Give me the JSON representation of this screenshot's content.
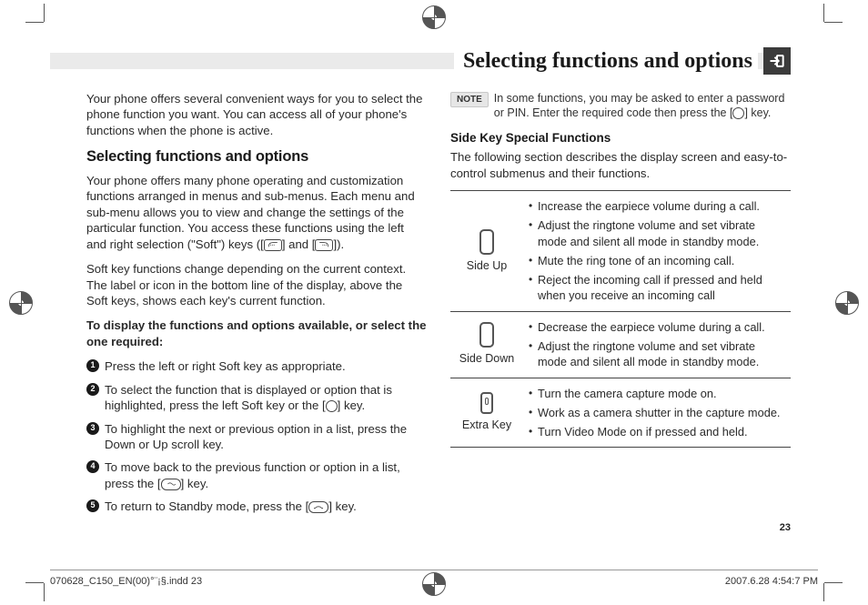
{
  "header": {
    "title": "Selecting functions and options"
  },
  "left_col": {
    "intro": "Your phone offers several convenient ways for you to select the phone function you want. You can access all of your phone's functions when the phone is active.",
    "h2": "Selecting functions and options",
    "p1_a": "Your phone offers many phone operating and customization functions arranged in menus and sub-menus. Each menu and sub-menu allows you to view and change the settings of the particular function. You access these functions using the left and right selection (\"Soft\") keys ([",
    "p1_b": "] and [",
    "p1_c": "]).",
    "p2": "Soft key functions change depending on the current context. The label or icon in the bottom line of the display, above the Soft keys, shows each key's current function.",
    "lead": "To display the functions and options available, or select the one required:",
    "steps": [
      "Press the left or right Soft key as appropriate.",
      "To select the function that is displayed or option that is highlighted, press the left Soft key or the [",
      "To highlight the next or previous option in a list, press the Down or Up scroll key.",
      "To move back to the previous function or option in a list, press the [",
      "To return to Standby mode, press the ["
    ],
    "step2_tail": "] key.",
    "step4_tail": "] key.",
    "step5_tail": "] key."
  },
  "right_col": {
    "note_label": "NOTE",
    "note_a": "In some functions, you may be asked to enter a password or PIN. Enter the required code then press the [",
    "note_b": "] key.",
    "subhead": "Side Key Special Functions",
    "sub_p": "The following section describes the display screen and easy-to-control submenus and their functions.",
    "table": {
      "rows": [
        {
          "label": "Side Up",
          "items": [
            "Increase the earpiece volume during a call.",
            "Adjust the ringtone volume and set vibrate mode and silent all mode in standby mode.",
            "Mute the ring tone of an incoming call.",
            "Reject the incoming call if pressed and held when you receive an incoming call"
          ]
        },
        {
          "label": "Side Down",
          "items": [
            "Decrease the earpiece volume during a call.",
            "Adjust the ringtone volume and set vibrate mode and silent all mode in standby mode."
          ]
        },
        {
          "label": "Extra Key",
          "items": [
            "Turn the camera capture mode on.",
            "Work as a camera shutter in the capture mode.",
            "Turn Video Mode on if pressed and held."
          ]
        }
      ]
    }
  },
  "page_number": "23",
  "footer": {
    "left": "070628_C150_EN(00)°¨¡§.indd   23",
    "right": "2007.6.28   4:54:7 PM"
  },
  "colors": {
    "band": "#eaeaea",
    "rule": "#444444",
    "text": "#2a2a2a",
    "icon_bg": "#3b3b3b"
  }
}
